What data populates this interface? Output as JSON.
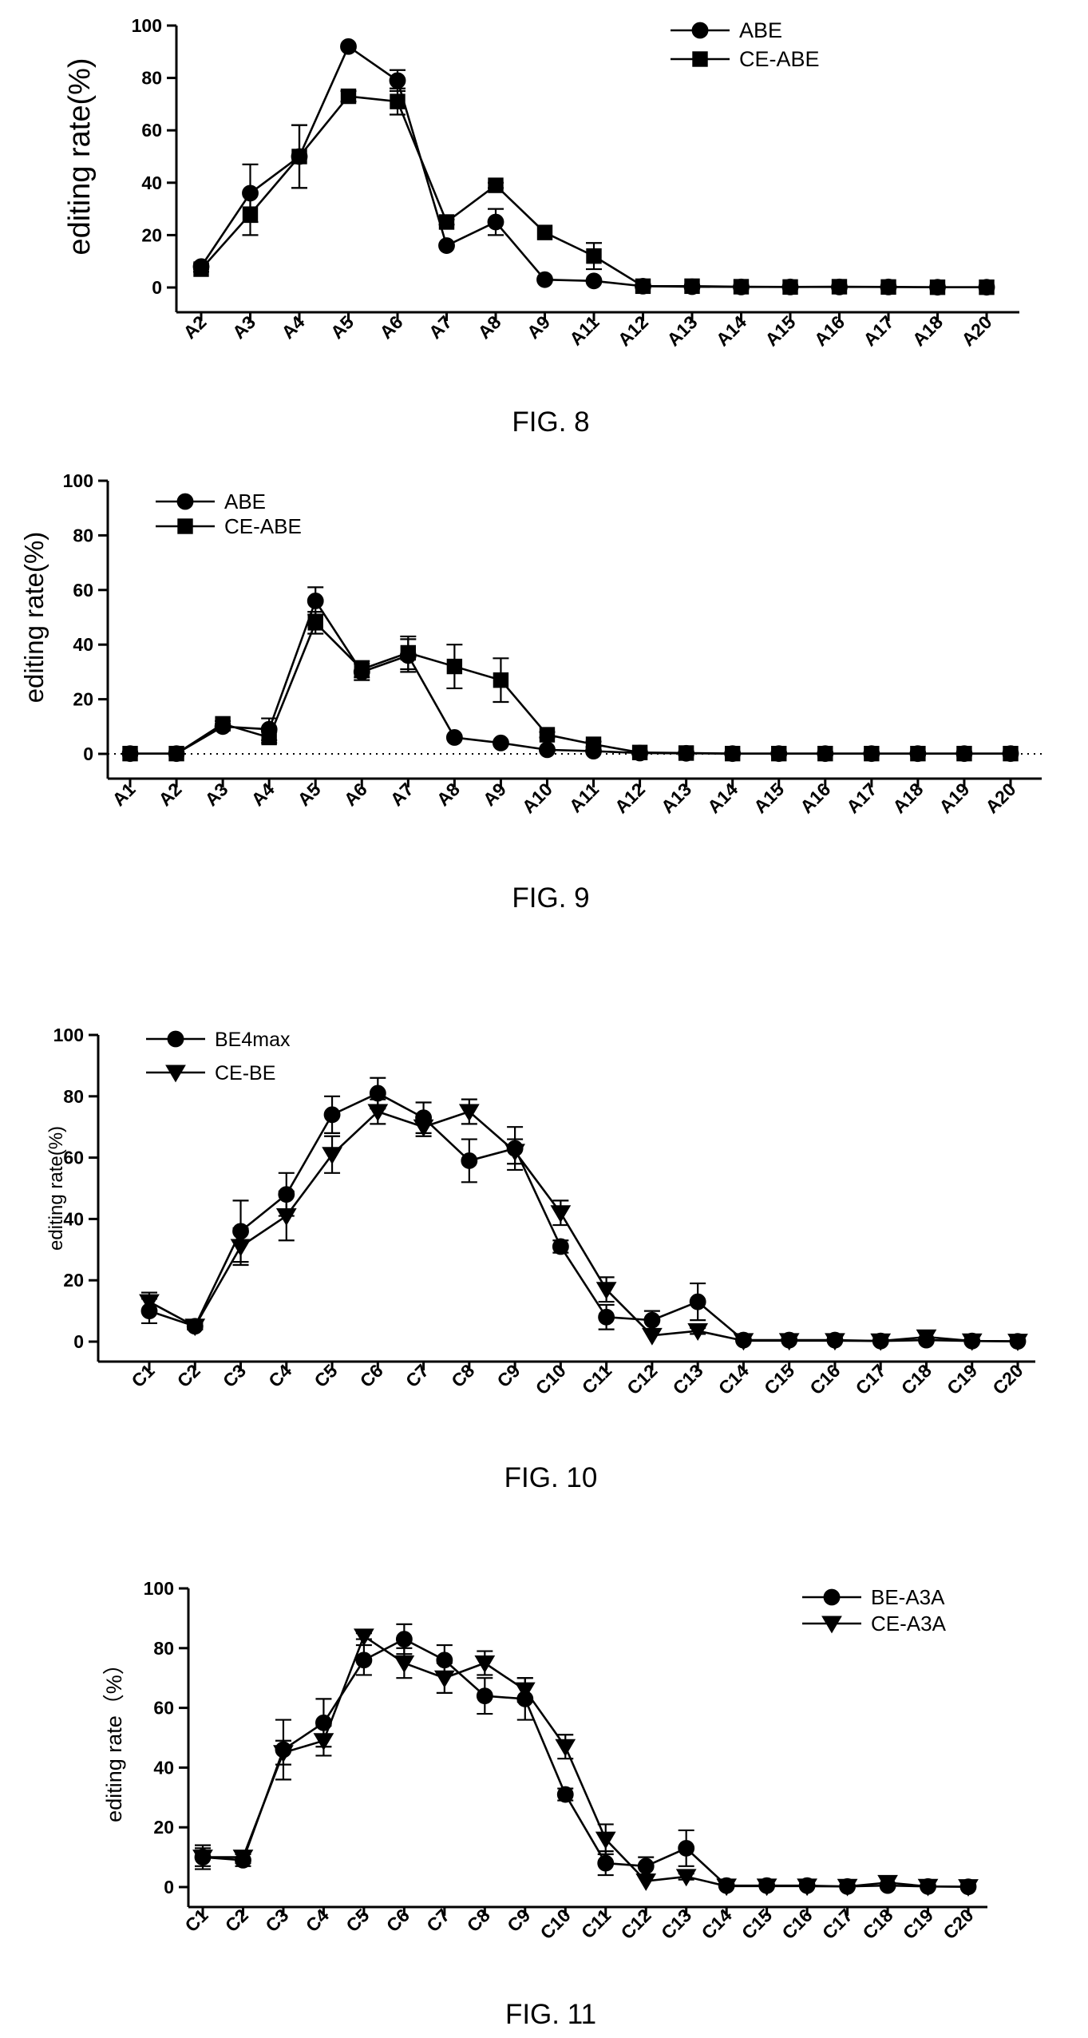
{
  "chart_data": [
    {
      "type": "line",
      "caption": "FIG. 8",
      "ylabel": "editing rate(%)",
      "ylim": [
        0,
        100
      ],
      "yticks": [
        0,
        20,
        40,
        60,
        80,
        100
      ],
      "legend_position": "top-right",
      "categories": [
        "A2",
        "A3",
        "A4",
        "A5",
        "A6",
        "A7",
        "A8",
        "A9",
        "A11",
        "A12",
        "A13",
        "A14",
        "A15",
        "A16",
        "A17",
        "A18",
        "A20"
      ],
      "series": [
        {
          "name": "ABE",
          "marker": "circle",
          "values": [
            8,
            36,
            50,
            92,
            79,
            16,
            25,
            3,
            2.5,
            0.5,
            0.3,
            0.2,
            0.2,
            0.2,
            0.2,
            0.1,
            0.1
          ],
          "errors": [
            1,
            11,
            12,
            0,
            4,
            0,
            5,
            0,
            0,
            0,
            0,
            0,
            0,
            0,
            0,
            0,
            0
          ]
        },
        {
          "name": "CE-ABE",
          "marker": "square",
          "values": [
            7,
            28,
            50,
            73,
            71,
            25,
            39,
            21,
            12,
            0.5,
            0.5,
            0.3,
            0.2,
            0.3,
            0.2,
            0.1,
            0.1
          ],
          "errors": [
            1,
            8,
            12,
            2,
            5,
            1,
            1,
            0,
            5,
            0,
            0,
            0,
            0,
            0,
            0,
            0,
            0
          ]
        }
      ]
    },
    {
      "type": "line",
      "caption": "FIG. 9",
      "ylabel": "editing rate(%)",
      "ylim": [
        0,
        100
      ],
      "yticks": [
        0,
        20,
        40,
        60,
        80,
        100
      ],
      "legend_position": "top-left",
      "zero_line": "dotted",
      "categories": [
        "A1",
        "A2",
        "A3",
        "A4",
        "A5",
        "A6",
        "A7",
        "A8",
        "A9",
        "A10",
        "A11",
        "A12",
        "A13",
        "A14",
        "A15",
        "A16",
        "A17",
        "A18",
        "A19",
        "A20"
      ],
      "series": [
        {
          "name": "ABE",
          "marker": "circle",
          "values": [
            0.1,
            0.1,
            10,
            9,
            56,
            30,
            36,
            6,
            4,
            1.5,
            1,
            0.3,
            0.2,
            0.1,
            0.1,
            0.1,
            0.1,
            0.1,
            0.1,
            0.1
          ],
          "errors": [
            0,
            0,
            1,
            4,
            5,
            3,
            6,
            0,
            0,
            0,
            0,
            0,
            0,
            0,
            0,
            0,
            0,
            0,
            0,
            0
          ]
        },
        {
          "name": "CE-ABE",
          "marker": "square",
          "values": [
            0.1,
            0.1,
            11,
            6,
            48,
            31,
            37,
            32,
            27,
            7,
            3.5,
            0.5,
            0.3,
            0.1,
            0.1,
            0.1,
            0.1,
            0.1,
            0.1,
            0.1
          ],
          "errors": [
            0,
            0,
            1,
            2,
            4,
            3,
            6,
            8,
            8,
            1,
            1,
            0,
            0,
            0,
            0,
            0,
            0,
            0,
            0,
            0
          ]
        }
      ]
    },
    {
      "type": "line",
      "caption": "FIG. 10",
      "ylabel": "editing rate(%)",
      "ylim": [
        0,
        100
      ],
      "yticks": [
        0,
        20,
        40,
        60,
        80,
        100
      ],
      "legend_position": "top-left",
      "categories": [
        "C1",
        "C2",
        "C3",
        "C4",
        "C5",
        "C6",
        "C7",
        "C8",
        "C9",
        "C10",
        "C11",
        "C12",
        "C13",
        "C14",
        "C15",
        "C16",
        "C17",
        "C18",
        "C19",
        "C20"
      ],
      "series": [
        {
          "name": "BE4max",
          "marker": "circle",
          "values": [
            10,
            5,
            36,
            48,
            74,
            81,
            73,
            59,
            63,
            31,
            8,
            7,
            13,
            0.5,
            0.5,
            0.5,
            0.2,
            0.5,
            0.2,
            0.1
          ],
          "errors": [
            4,
            1,
            10,
            7,
            6,
            5,
            5,
            7,
            7,
            2,
            4,
            3,
            6,
            0,
            0,
            0,
            0,
            0,
            0,
            0
          ]
        },
        {
          "name": "CE-BE",
          "marker": "triangle-down",
          "values": [
            13,
            5,
            31,
            41,
            61,
            75,
            70,
            75,
            62,
            42,
            17,
            2,
            3.5,
            0.3,
            0.3,
            0.3,
            0.2,
            1.5,
            0.2,
            0.1
          ],
          "errors": [
            3,
            1,
            6,
            8,
            6,
            4,
            3,
            4,
            4,
            4,
            4,
            0,
            1,
            0,
            0,
            0,
            0,
            1.5,
            0,
            0
          ]
        }
      ]
    },
    {
      "type": "line",
      "caption": "FIG. 11",
      "ylabel": "editing rate（%）",
      "ylim": [
        0,
        100
      ],
      "yticks": [
        0,
        20,
        40,
        60,
        80,
        100
      ],
      "legend_position": "top-right",
      "categories": [
        "C1",
        "C2",
        "C3",
        "C4",
        "C5",
        "C6",
        "C7",
        "C8",
        "C9",
        "C10",
        "C11",
        "C12",
        "C13",
        "C14",
        "C15",
        "C16",
        "C17",
        "C18",
        "C19",
        "C20"
      ],
      "series": [
        {
          "name": "BE-A3A",
          "marker": "circle",
          "values": [
            10,
            9,
            46,
            55,
            76,
            83,
            76,
            64,
            63,
            31,
            8,
            7,
            13,
            0.5,
            0.5,
            0.5,
            0.2,
            0.5,
            0.2,
            0.1
          ],
          "errors": [
            4,
            2,
            10,
            8,
            5,
            5,
            5,
            6,
            7,
            2,
            4,
            3,
            6,
            0,
            0,
            0,
            0,
            0,
            0,
            0
          ]
        },
        {
          "name": "CE-A3A",
          "marker": "triangle-down",
          "values": [
            10,
            10,
            45,
            49,
            84,
            75,
            70,
            75,
            66,
            47,
            16,
            2,
            3.5,
            0.3,
            0.3,
            0.3,
            0.2,
            1.5,
            0.2,
            0.1
          ],
          "errors": [
            3,
            2,
            4,
            5,
            1,
            5,
            5,
            4,
            4,
            4,
            5,
            0,
            1,
            0,
            0,
            0,
            0,
            1.5,
            0,
            0
          ]
        }
      ]
    }
  ]
}
